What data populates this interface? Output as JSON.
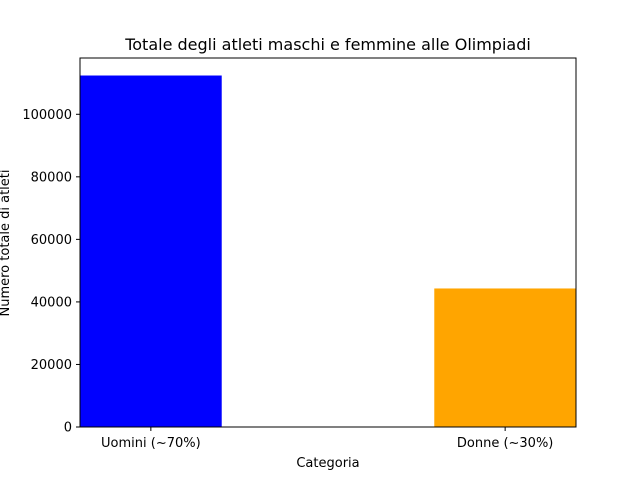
{
  "chart_data": {
    "type": "bar",
    "title": "Totale degli atleti maschi e femmine alle Olimpiadi",
    "xlabel": "Categoria",
    "ylabel": "Numero totale di atleti",
    "categories": [
      "Uomini (~70%)",
      "Donne (~30%)"
    ],
    "values": [
      112400,
      44300
    ],
    "colors": [
      "#0000ff",
      "#ffa500"
    ],
    "ylim": [
      0,
      118000
    ],
    "yticks": [
      0,
      20000,
      40000,
      60000,
      80000,
      100000
    ],
    "grid": false
  }
}
